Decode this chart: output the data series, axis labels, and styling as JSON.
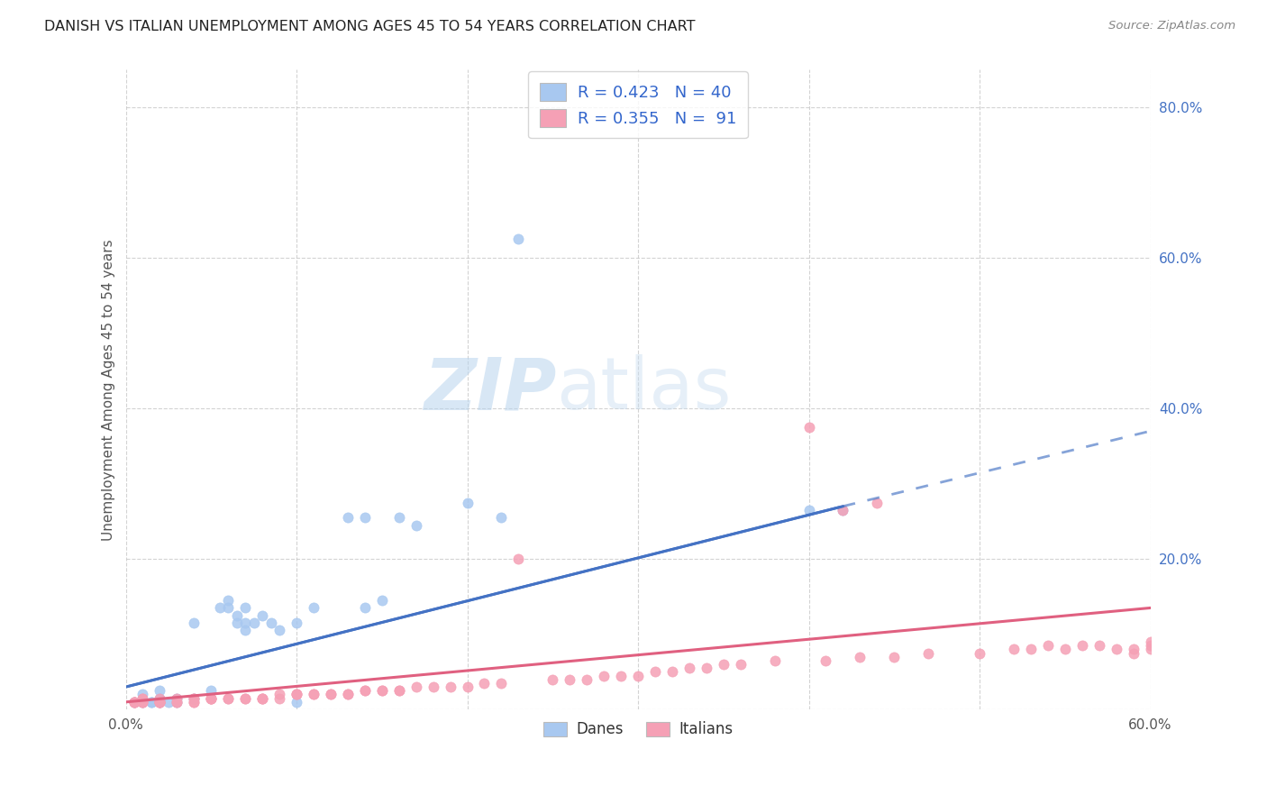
{
  "title": "DANISH VS ITALIAN UNEMPLOYMENT AMONG AGES 45 TO 54 YEARS CORRELATION CHART",
  "source": "Source: ZipAtlas.com",
  "ylabel": "Unemployment Among Ages 45 to 54 years",
  "xlim": [
    0.0,
    0.6
  ],
  "ylim": [
    0.0,
    0.85
  ],
  "danes_R": "0.423",
  "danes_N": "40",
  "italians_R": "0.355",
  "italians_N": "91",
  "danes_color": "#a8c8f0",
  "italians_color": "#f5a0b5",
  "danes_line_color": "#4472c4",
  "italians_line_color": "#e06080",
  "legend_text_color": "#3366cc",
  "background_color": "#ffffff",
  "watermark_zip": "ZIP",
  "watermark_atlas": "atlas",
  "danes_x": [
    0.005,
    0.01,
    0.01,
    0.015,
    0.015,
    0.02,
    0.02,
    0.02,
    0.025,
    0.03,
    0.03,
    0.04,
    0.04,
    0.05,
    0.055,
    0.06,
    0.06,
    0.065,
    0.065,
    0.07,
    0.07,
    0.07,
    0.075,
    0.08,
    0.085,
    0.09,
    0.1,
    0.1,
    0.11,
    0.13,
    0.14,
    0.14,
    0.15,
    0.16,
    0.17,
    0.2,
    0.22,
    0.23,
    0.4,
    0.42
  ],
  "danes_y": [
    0.01,
    0.01,
    0.02,
    0.01,
    0.01,
    0.01,
    0.015,
    0.025,
    0.01,
    0.01,
    0.015,
    0.015,
    0.115,
    0.025,
    0.135,
    0.135,
    0.145,
    0.115,
    0.125,
    0.135,
    0.105,
    0.115,
    0.115,
    0.125,
    0.115,
    0.105,
    0.01,
    0.115,
    0.135,
    0.255,
    0.255,
    0.135,
    0.145,
    0.255,
    0.245,
    0.275,
    0.255,
    0.625,
    0.265,
    0.265
  ],
  "italians_x": [
    0.005,
    0.005,
    0.005,
    0.005,
    0.01,
    0.01,
    0.01,
    0.01,
    0.01,
    0.02,
    0.02,
    0.02,
    0.02,
    0.02,
    0.02,
    0.03,
    0.03,
    0.03,
    0.04,
    0.04,
    0.04,
    0.04,
    0.05,
    0.05,
    0.05,
    0.05,
    0.06,
    0.06,
    0.07,
    0.07,
    0.08,
    0.08,
    0.08,
    0.09,
    0.09,
    0.1,
    0.1,
    0.1,
    0.11,
    0.11,
    0.12,
    0.12,
    0.13,
    0.13,
    0.14,
    0.14,
    0.15,
    0.15,
    0.16,
    0.16,
    0.17,
    0.18,
    0.19,
    0.2,
    0.21,
    0.22,
    0.23,
    0.25,
    0.26,
    0.27,
    0.28,
    0.29,
    0.3,
    0.31,
    0.32,
    0.33,
    0.34,
    0.35,
    0.36,
    0.38,
    0.4,
    0.41,
    0.42,
    0.43,
    0.44,
    0.45,
    0.47,
    0.5,
    0.52,
    0.53,
    0.54,
    0.55,
    0.56,
    0.57,
    0.58,
    0.59,
    0.59,
    0.6,
    0.6,
    0.6
  ],
  "italians_y": [
    0.01,
    0.01,
    0.01,
    0.01,
    0.01,
    0.01,
    0.01,
    0.015,
    0.015,
    0.01,
    0.01,
    0.01,
    0.01,
    0.01,
    0.015,
    0.01,
    0.01,
    0.015,
    0.01,
    0.01,
    0.015,
    0.015,
    0.015,
    0.015,
    0.015,
    0.015,
    0.015,
    0.015,
    0.015,
    0.015,
    0.015,
    0.015,
    0.015,
    0.015,
    0.02,
    0.02,
    0.02,
    0.02,
    0.02,
    0.02,
    0.02,
    0.02,
    0.02,
    0.02,
    0.025,
    0.025,
    0.025,
    0.025,
    0.025,
    0.025,
    0.03,
    0.03,
    0.03,
    0.03,
    0.035,
    0.035,
    0.2,
    0.04,
    0.04,
    0.04,
    0.045,
    0.045,
    0.045,
    0.05,
    0.05,
    0.055,
    0.055,
    0.06,
    0.06,
    0.065,
    0.375,
    0.065,
    0.265,
    0.07,
    0.275,
    0.07,
    0.075,
    0.075,
    0.08,
    0.08,
    0.085,
    0.08,
    0.085,
    0.085,
    0.08,
    0.075,
    0.08,
    0.08,
    0.085,
    0.09
  ],
  "danes_line_start_x": 0.0,
  "danes_line_start_y": 0.03,
  "danes_line_end_x": 0.42,
  "danes_line_end_y": 0.27,
  "danes_line_dash_end_x": 0.6,
  "danes_line_dash_end_y": 0.37,
  "italians_line_start_x": 0.0,
  "italians_line_start_y": 0.01,
  "italians_line_end_x": 0.6,
  "italians_line_end_y": 0.135
}
